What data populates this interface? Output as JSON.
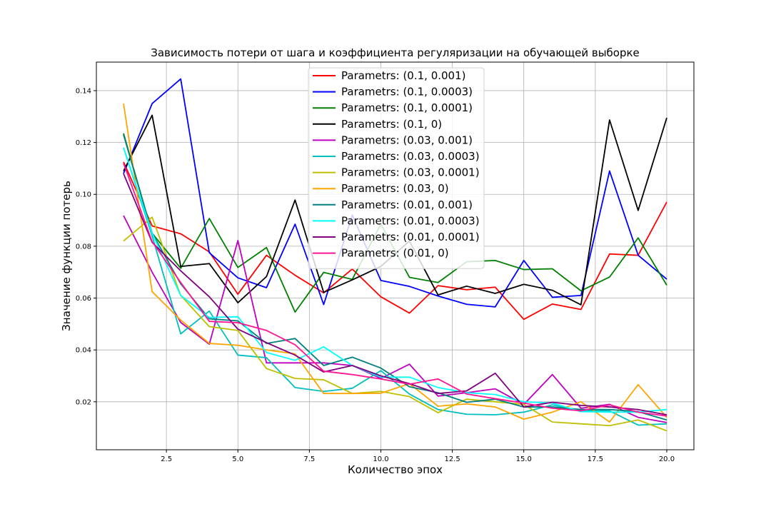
{
  "chart_data": {
    "type": "line",
    "title": "Зависимость потери от шага и коэффициента регуляризации на обучающей выборке",
    "xlabel": "Количество эпох",
    "ylabel": "Значение функции потерь",
    "xlim": [
      0.05,
      20.95
    ],
    "ylim": [
      0.0015,
      0.151
    ],
    "xticks": [
      2.5,
      5.0,
      7.5,
      10.0,
      12.5,
      15.0,
      17.5,
      20.0
    ],
    "xtick_labels": [
      "2.5",
      "5.0",
      "7.5",
      "10.0",
      "12.5",
      "15.0",
      "17.5",
      "20.0"
    ],
    "yticks": [
      0.02,
      0.04,
      0.06,
      0.08,
      0.1,
      0.12,
      0.14
    ],
    "ytick_labels": [
      "0.02",
      "0.04",
      "0.06",
      "0.08",
      "0.10",
      "0.12",
      "0.14"
    ],
    "grid": true,
    "legend_position": "top-center",
    "x": [
      1,
      2,
      3,
      4,
      5,
      6,
      7,
      8,
      9,
      10,
      11,
      12,
      13,
      14,
      15,
      16,
      17,
      18,
      19,
      20
    ],
    "series": [
      {
        "name": "Parametrs: (0.1, 0.001)",
        "color": "#ff0000",
        "values": [
          0.1125,
          0.0878,
          0.0848,
          0.0778,
          0.0615,
          0.0765,
          0.0688,
          0.062,
          0.0712,
          0.0605,
          0.0542,
          0.0648,
          0.0632,
          0.0642,
          0.0518,
          0.0577,
          0.0556,
          0.077,
          0.0765,
          0.097
        ]
      },
      {
        "name": "Parametrs: (0.1, 0.0003)",
        "color": "#0000ff",
        "values": [
          0.108,
          0.135,
          0.1445,
          0.0775,
          0.0678,
          0.064,
          0.0885,
          0.0575,
          0.092,
          0.0668,
          0.0645,
          0.0608,
          0.0576,
          0.0566,
          0.0745,
          0.0603,
          0.061,
          0.109,
          0.0765,
          0.0673
        ]
      },
      {
        "name": "Parametrs: (0.1, 0.0001)",
        "color": "#008000",
        "values": [
          0.1235,
          0.085,
          0.0715,
          0.0907,
          0.0718,
          0.0795,
          0.0546,
          0.0699,
          0.0672,
          0.0885,
          0.068,
          0.066,
          0.074,
          0.0745,
          0.071,
          0.0713,
          0.0628,
          0.0681,
          0.0832,
          0.065
        ]
      },
      {
        "name": "Parametrs: (0.1, 0)",
        "color": "#000000",
        "values": [
          0.109,
          0.1305,
          0.0722,
          0.0733,
          0.0582,
          0.0683,
          0.0978,
          0.0622,
          0.067,
          0.0722,
          0.082,
          0.0612,
          0.0646,
          0.0618,
          0.0653,
          0.063,
          0.0574,
          0.1287,
          0.0938,
          0.1295
        ]
      },
      {
        "name": "Parametrs: (0.03, 0.001)",
        "color": "#bf00bf",
        "values": [
          0.0918,
          0.07,
          0.0506,
          0.0422,
          0.0822,
          0.035,
          0.035,
          0.035,
          0.034,
          0.029,
          0.0345,
          0.0222,
          0.0235,
          0.025,
          0.019,
          0.0305,
          0.0175,
          0.019,
          0.014,
          0.012
        ]
      },
      {
        "name": "Parametrs: (0.03, 0.0003)",
        "color": "#00bfbf",
        "values": [
          0.118,
          0.084,
          0.0462,
          0.055,
          0.038,
          0.037,
          0.0255,
          0.024,
          0.0252,
          0.032,
          0.023,
          0.017,
          0.0152,
          0.015,
          0.016,
          0.0188,
          0.0165,
          0.0165,
          0.011,
          0.0115
        ]
      },
      {
        "name": "Parametrs: (0.03, 0.0001)",
        "color": "#bfbf00",
        "values": [
          0.082,
          0.0912,
          0.061,
          0.049,
          0.0475,
          0.0328,
          0.029,
          0.0285,
          0.0232,
          0.024,
          0.022,
          0.0158,
          0.021,
          0.02,
          0.019,
          0.0122,
          0.0115,
          0.0108,
          0.013,
          0.0088
        ]
      },
      {
        "name": "Parametrs: (0.03, 0)",
        "color": "#ffa500",
        "values": [
          0.135,
          0.0625,
          0.0515,
          0.0425,
          0.0418,
          0.04,
          0.0385,
          0.0232,
          0.0232,
          0.0233,
          0.027,
          0.0183,
          0.0192,
          0.018,
          0.0133,
          0.016,
          0.02,
          0.0122,
          0.0266,
          0.014
        ]
      },
      {
        "name": "Parametrs: (0.01, 0.001)",
        "color": "#008080",
        "values": [
          0.123,
          0.085,
          0.0655,
          0.052,
          0.0512,
          0.0425,
          0.0444,
          0.034,
          0.0372,
          0.033,
          0.0258,
          0.0235,
          0.0198,
          0.021,
          0.018,
          0.018,
          0.017,
          0.017,
          0.0162,
          0.013
        ]
      },
      {
        "name": "Parametrs: (0.01, 0.0003)",
        "color": "#00ffff",
        "values": [
          0.118,
          0.085,
          0.061,
          0.0525,
          0.0528,
          0.039,
          0.036,
          0.0412,
          0.034,
          0.0295,
          0.0295,
          0.0255,
          0.0235,
          0.0228,
          0.02,
          0.0195,
          0.0162,
          0.016,
          0.016,
          0.017
        ]
      },
      {
        "name": "Parametrs: (0.01, 0.0001)",
        "color": "#800080",
        "values": [
          0.108,
          0.0815,
          0.0705,
          0.0605,
          0.048,
          0.0428,
          0.038,
          0.0315,
          0.034,
          0.03,
          0.027,
          0.0232,
          0.0242,
          0.031,
          0.018,
          0.0198,
          0.0186,
          0.018,
          0.017,
          0.015
        ]
      },
      {
        "name": "Parametrs: (0.01, 0)",
        "color": "#ff1493",
        "values": [
          0.112,
          0.0818,
          0.066,
          0.051,
          0.0505,
          0.0475,
          0.042,
          0.0318,
          0.0305,
          0.0288,
          0.0268,
          0.0288,
          0.023,
          0.0212,
          0.0195,
          0.0175,
          0.0165,
          0.0188,
          0.016,
          0.0145
        ]
      }
    ]
  }
}
